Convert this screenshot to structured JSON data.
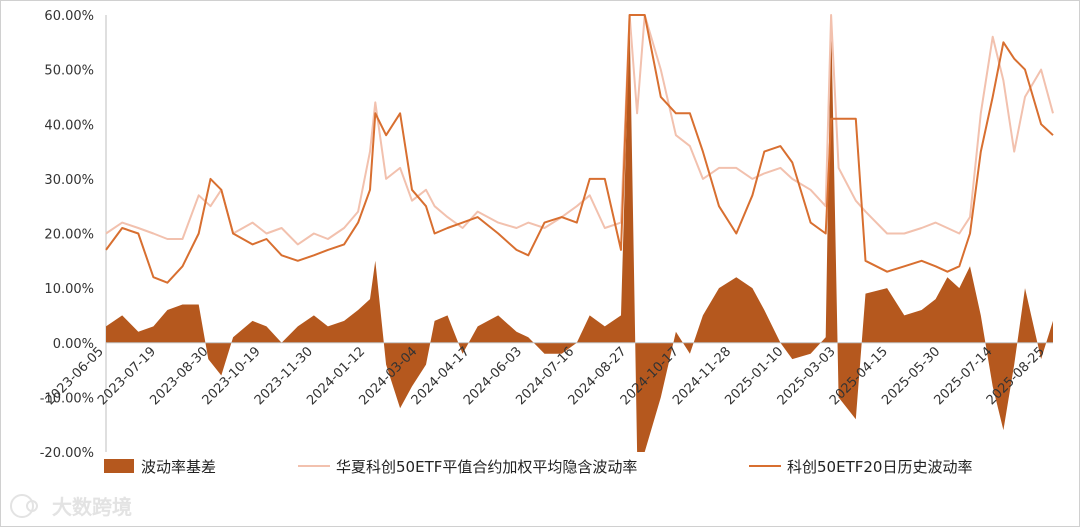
{
  "chart_data": {
    "type": "line",
    "y_axis": {
      "min": -0.2,
      "max": 0.6,
      "step": 0.1,
      "tick_labels": [
        "-20.00%",
        "-10.00%",
        "0.00%",
        "10.00%",
        "20.00%",
        "30.00%",
        "40.00%",
        "50.00%",
        "60.00%"
      ]
    },
    "x_axis": {
      "min": "2023-06-05",
      "max": "2025-10-31",
      "tick_labels": [
        "2023-06-05",
        "2023-07-19",
        "2023-08-30",
        "2023-10-19",
        "2023-11-30",
        "2024-01-12",
        "2024-03-04",
        "2024-04-17",
        "2024-06-03",
        "2024-07-16",
        "2024-08-27",
        "2024-10-17",
        "2024-11-28",
        "2025-01-10",
        "2025-03-03",
        "2025-04-15",
        "2025-05-30",
        "2025-07-14",
        "2025-08-25"
      ]
    },
    "series": [
      {
        "name": "波动率基差",
        "kind": "area",
        "color": "#b5581e",
        "points": [
          [
            "2023-06-05",
            0.03
          ],
          [
            "2023-06-20",
            0.05
          ],
          [
            "2023-07-05",
            0.02
          ],
          [
            "2023-07-19",
            0.03
          ],
          [
            "2023-08-01",
            0.06
          ],
          [
            "2023-08-15",
            0.07
          ],
          [
            "2023-08-30",
            0.07
          ],
          [
            "2023-09-08",
            -0.03
          ],
          [
            "2023-09-20",
            -0.06
          ],
          [
            "2023-10-01",
            0.01
          ],
          [
            "2023-10-19",
            0.04
          ],
          [
            "2023-11-01",
            0.03
          ],
          [
            "2023-11-15",
            0.0
          ],
          [
            "2023-11-30",
            0.03
          ],
          [
            "2023-12-15",
            0.05
          ],
          [
            "2023-12-28",
            0.03
          ],
          [
            "2024-01-12",
            0.04
          ],
          [
            "2024-01-25",
            0.06
          ],
          [
            "2024-02-05",
            0.08
          ],
          [
            "2024-02-10",
            0.15
          ],
          [
            "2024-02-20",
            -0.04
          ],
          [
            "2024-03-04",
            -0.12
          ],
          [
            "2024-03-15",
            -0.08
          ],
          [
            "2024-03-28",
            -0.04
          ],
          [
            "2024-04-05",
            0.04
          ],
          [
            "2024-04-17",
            0.05
          ],
          [
            "2024-05-01",
            -0.02
          ],
          [
            "2024-05-15",
            0.03
          ],
          [
            "2024-06-03",
            0.05
          ],
          [
            "2024-06-20",
            0.02
          ],
          [
            "2024-07-01",
            0.01
          ],
          [
            "2024-07-16",
            -0.02
          ],
          [
            "2024-08-01",
            -0.02
          ],
          [
            "2024-08-15",
            0.0
          ],
          [
            "2024-08-27",
            0.05
          ],
          [
            "2024-09-10",
            0.03
          ],
          [
            "2024-09-25",
            0.05
          ],
          [
            "2024-10-03",
            0.6
          ],
          [
            "2024-10-10",
            -0.2
          ],
          [
            "2024-10-17",
            -0.2
          ],
          [
            "2024-11-01",
            -0.1
          ],
          [
            "2024-11-15",
            0.02
          ],
          [
            "2024-11-28",
            -0.02
          ],
          [
            "2024-12-10",
            0.05
          ],
          [
            "2024-12-25",
            0.1
          ],
          [
            "2025-01-10",
            0.12
          ],
          [
            "2025-01-25",
            0.1
          ],
          [
            "2025-02-05",
            0.06
          ],
          [
            "2025-02-20",
            0.0
          ],
          [
            "2025-03-03",
            -0.03
          ],
          [
            "2025-03-20",
            -0.02
          ],
          [
            "2025-04-03",
            0.01
          ],
          [
            "2025-04-08",
            0.6
          ],
          [
            "2025-04-15",
            -0.1
          ],
          [
            "2025-05-01",
            -0.14
          ],
          [
            "2025-05-10",
            0.09
          ],
          [
            "2025-05-30",
            0.1
          ],
          [
            "2025-06-15",
            0.05
          ],
          [
            "2025-07-01",
            0.06
          ],
          [
            "2025-07-14",
            0.08
          ],
          [
            "2025-07-25",
            0.12
          ],
          [
            "2025-08-05",
            0.1
          ],
          [
            "2025-08-15",
            0.14
          ],
          [
            "2025-08-25",
            0.05
          ],
          [
            "2025-09-05",
            -0.08
          ],
          [
            "2025-09-15",
            -0.16
          ],
          [
            "2025-09-25",
            -0.04
          ],
          [
            "2025-10-05",
            0.1
          ],
          [
            "2025-10-20",
            -0.03
          ],
          [
            "2025-10-31",
            0.04
          ]
        ]
      },
      {
        "name": "华夏科创50ETF平值合约加权平均隐含波动率",
        "kind": "line",
        "color": "#f2c1ae",
        "points": [
          [
            "2023-06-05",
            0.2
          ],
          [
            "2023-06-20",
            0.22
          ],
          [
            "2023-07-05",
            0.21
          ],
          [
            "2023-07-19",
            0.2
          ],
          [
            "2023-08-01",
            0.19
          ],
          [
            "2023-08-15",
            0.19
          ],
          [
            "2023-08-30",
            0.27
          ],
          [
            "2023-09-10",
            0.25
          ],
          [
            "2023-09-20",
            0.28
          ],
          [
            "2023-10-01",
            0.2
          ],
          [
            "2023-10-19",
            0.22
          ],
          [
            "2023-11-01",
            0.2
          ],
          [
            "2023-11-15",
            0.21
          ],
          [
            "2023-11-30",
            0.18
          ],
          [
            "2023-12-15",
            0.2
          ],
          [
            "2023-12-28",
            0.19
          ],
          [
            "2024-01-12",
            0.21
          ],
          [
            "2024-01-25",
            0.24
          ],
          [
            "2024-02-05",
            0.35
          ],
          [
            "2024-02-10",
            0.44
          ],
          [
            "2024-02-20",
            0.3
          ],
          [
            "2024-03-04",
            0.32
          ],
          [
            "2024-03-15",
            0.26
          ],
          [
            "2024-03-28",
            0.28
          ],
          [
            "2024-04-05",
            0.25
          ],
          [
            "2024-04-17",
            0.23
          ],
          [
            "2024-05-01",
            0.21
          ],
          [
            "2024-05-15",
            0.24
          ],
          [
            "2024-06-03",
            0.22
          ],
          [
            "2024-06-20",
            0.21
          ],
          [
            "2024-07-01",
            0.22
          ],
          [
            "2024-07-16",
            0.21
          ],
          [
            "2024-08-01",
            0.23
          ],
          [
            "2024-08-15",
            0.25
          ],
          [
            "2024-08-27",
            0.27
          ],
          [
            "2024-09-10",
            0.21
          ],
          [
            "2024-09-25",
            0.22
          ],
          [
            "2024-10-03",
            0.6
          ],
          [
            "2024-10-10",
            0.42
          ],
          [
            "2024-10-17",
            0.6
          ],
          [
            "2024-11-01",
            0.5
          ],
          [
            "2024-11-15",
            0.38
          ],
          [
            "2024-11-28",
            0.36
          ],
          [
            "2024-12-10",
            0.3
          ],
          [
            "2024-12-25",
            0.32
          ],
          [
            "2025-01-10",
            0.32
          ],
          [
            "2025-01-25",
            0.3
          ],
          [
            "2025-02-05",
            0.31
          ],
          [
            "2025-02-20",
            0.32
          ],
          [
            "2025-03-03",
            0.3
          ],
          [
            "2025-03-20",
            0.28
          ],
          [
            "2025-04-03",
            0.25
          ],
          [
            "2025-04-08",
            0.6
          ],
          [
            "2025-04-15",
            0.32
          ],
          [
            "2025-05-01",
            0.26
          ],
          [
            "2025-05-10",
            0.24
          ],
          [
            "2025-05-30",
            0.2
          ],
          [
            "2025-06-15",
            0.2
          ],
          [
            "2025-07-01",
            0.21
          ],
          [
            "2025-07-14",
            0.22
          ],
          [
            "2025-07-25",
            0.21
          ],
          [
            "2025-08-05",
            0.2
          ],
          [
            "2025-08-15",
            0.23
          ],
          [
            "2025-08-25",
            0.42
          ],
          [
            "2025-09-05",
            0.56
          ],
          [
            "2025-09-15",
            0.48
          ],
          [
            "2025-09-25",
            0.35
          ],
          [
            "2025-10-05",
            0.45
          ],
          [
            "2025-10-20",
            0.5
          ],
          [
            "2025-10-31",
            0.42
          ]
        ]
      },
      {
        "name": "科创50ETF20日历史波动率",
        "kind": "line",
        "color": "#d86f30",
        "points": [
          [
            "2023-06-05",
            0.17
          ],
          [
            "2023-06-20",
            0.21
          ],
          [
            "2023-07-05",
            0.2
          ],
          [
            "2023-07-19",
            0.12
          ],
          [
            "2023-08-01",
            0.11
          ],
          [
            "2023-08-15",
            0.14
          ],
          [
            "2023-08-30",
            0.2
          ],
          [
            "2023-09-10",
            0.3
          ],
          [
            "2023-09-20",
            0.28
          ],
          [
            "2023-10-01",
            0.2
          ],
          [
            "2023-10-19",
            0.18
          ],
          [
            "2023-11-01",
            0.19
          ],
          [
            "2023-11-15",
            0.16
          ],
          [
            "2023-11-30",
            0.15
          ],
          [
            "2023-12-15",
            0.16
          ],
          [
            "2023-12-28",
            0.17
          ],
          [
            "2024-01-12",
            0.18
          ],
          [
            "2024-01-25",
            0.22
          ],
          [
            "2024-02-05",
            0.28
          ],
          [
            "2024-02-10",
            0.42
          ],
          [
            "2024-02-20",
            0.38
          ],
          [
            "2024-03-04",
            0.42
          ],
          [
            "2024-03-15",
            0.28
          ],
          [
            "2024-03-28",
            0.25
          ],
          [
            "2024-04-05",
            0.2
          ],
          [
            "2024-04-17",
            0.21
          ],
          [
            "2024-05-01",
            0.22
          ],
          [
            "2024-05-15",
            0.23
          ],
          [
            "2024-06-03",
            0.2
          ],
          [
            "2024-06-20",
            0.17
          ],
          [
            "2024-07-01",
            0.16
          ],
          [
            "2024-07-16",
            0.22
          ],
          [
            "2024-08-01",
            0.23
          ],
          [
            "2024-08-15",
            0.22
          ],
          [
            "2024-08-27",
            0.3
          ],
          [
            "2024-09-10",
            0.3
          ],
          [
            "2024-09-25",
            0.17
          ],
          [
            "2024-10-03",
            0.6
          ],
          [
            "2024-10-10",
            0.6
          ],
          [
            "2024-10-17",
            0.6
          ],
          [
            "2024-11-01",
            0.45
          ],
          [
            "2024-11-15",
            0.42
          ],
          [
            "2024-11-28",
            0.42
          ],
          [
            "2024-12-10",
            0.35
          ],
          [
            "2024-12-25",
            0.25
          ],
          [
            "2025-01-10",
            0.2
          ],
          [
            "2025-01-25",
            0.27
          ],
          [
            "2025-02-05",
            0.35
          ],
          [
            "2025-02-20",
            0.36
          ],
          [
            "2025-03-03",
            0.33
          ],
          [
            "2025-03-20",
            0.22
          ],
          [
            "2025-04-03",
            0.2
          ],
          [
            "2025-04-08",
            0.41
          ],
          [
            "2025-04-15",
            0.41
          ],
          [
            "2025-05-01",
            0.41
          ],
          [
            "2025-05-10",
            0.15
          ],
          [
            "2025-05-30",
            0.13
          ],
          [
            "2025-06-15",
            0.14
          ],
          [
            "2025-07-01",
            0.15
          ],
          [
            "2025-07-14",
            0.14
          ],
          [
            "2025-07-25",
            0.13
          ],
          [
            "2025-08-05",
            0.14
          ],
          [
            "2025-08-15",
            0.2
          ],
          [
            "2025-08-25",
            0.35
          ],
          [
            "2025-09-05",
            0.45
          ],
          [
            "2025-09-15",
            0.55
          ],
          [
            "2025-09-25",
            0.52
          ],
          [
            "2025-10-05",
            0.5
          ],
          [
            "2025-10-20",
            0.4
          ],
          [
            "2025-10-31",
            0.38
          ]
        ]
      }
    ],
    "legend_position": "bottom",
    "grid": false
  },
  "watermark": {
    "text": "大数跨境"
  }
}
